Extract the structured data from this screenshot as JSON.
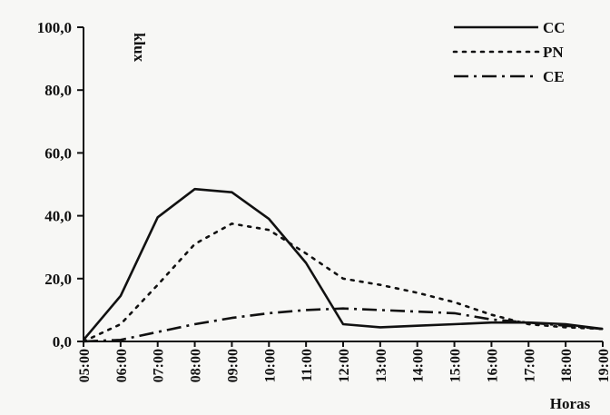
{
  "chart_data": {
    "type": "line",
    "ylabel": "klux",
    "xlabel": "Horas",
    "ylim": [
      0,
      100
    ],
    "y_ticks": [
      "0,0",
      "20,0",
      "40,0",
      "60,0",
      "80,0",
      "100,0"
    ],
    "y_tick_values": [
      0,
      20,
      40,
      60,
      80,
      100
    ],
    "categories": [
      "05:00",
      "06:00",
      "07:00",
      "08:00",
      "09:00",
      "10:00",
      "11:00",
      "12:00",
      "13:00",
      "14:00",
      "15:00",
      "16:00",
      "17:00",
      "18:00",
      "19:00"
    ],
    "grid": false,
    "legend_position": "top-right",
    "series": [
      {
        "name": "CC",
        "style": "solid",
        "color": "#111111",
        "values": [
          0.5,
          14.5,
          39.5,
          48.5,
          47.5,
          39,
          25,
          5.5,
          4.5,
          5,
          5.5,
          6,
          6,
          5.5,
          4
        ]
      },
      {
        "name": "PN",
        "style": "dotted",
        "color": "#111111",
        "values": [
          0,
          5.5,
          18,
          31,
          37.5,
          35.5,
          28,
          20,
          18,
          15.5,
          12.5,
          8.5,
          5.5,
          4.5,
          4
        ]
      },
      {
        "name": "CE",
        "style": "dashdot",
        "color": "#111111",
        "values": [
          0,
          0.5,
          3,
          5.5,
          7.5,
          9,
          10,
          10.5,
          10,
          9.5,
          9,
          7,
          6,
          5,
          4
        ]
      }
    ]
  }
}
